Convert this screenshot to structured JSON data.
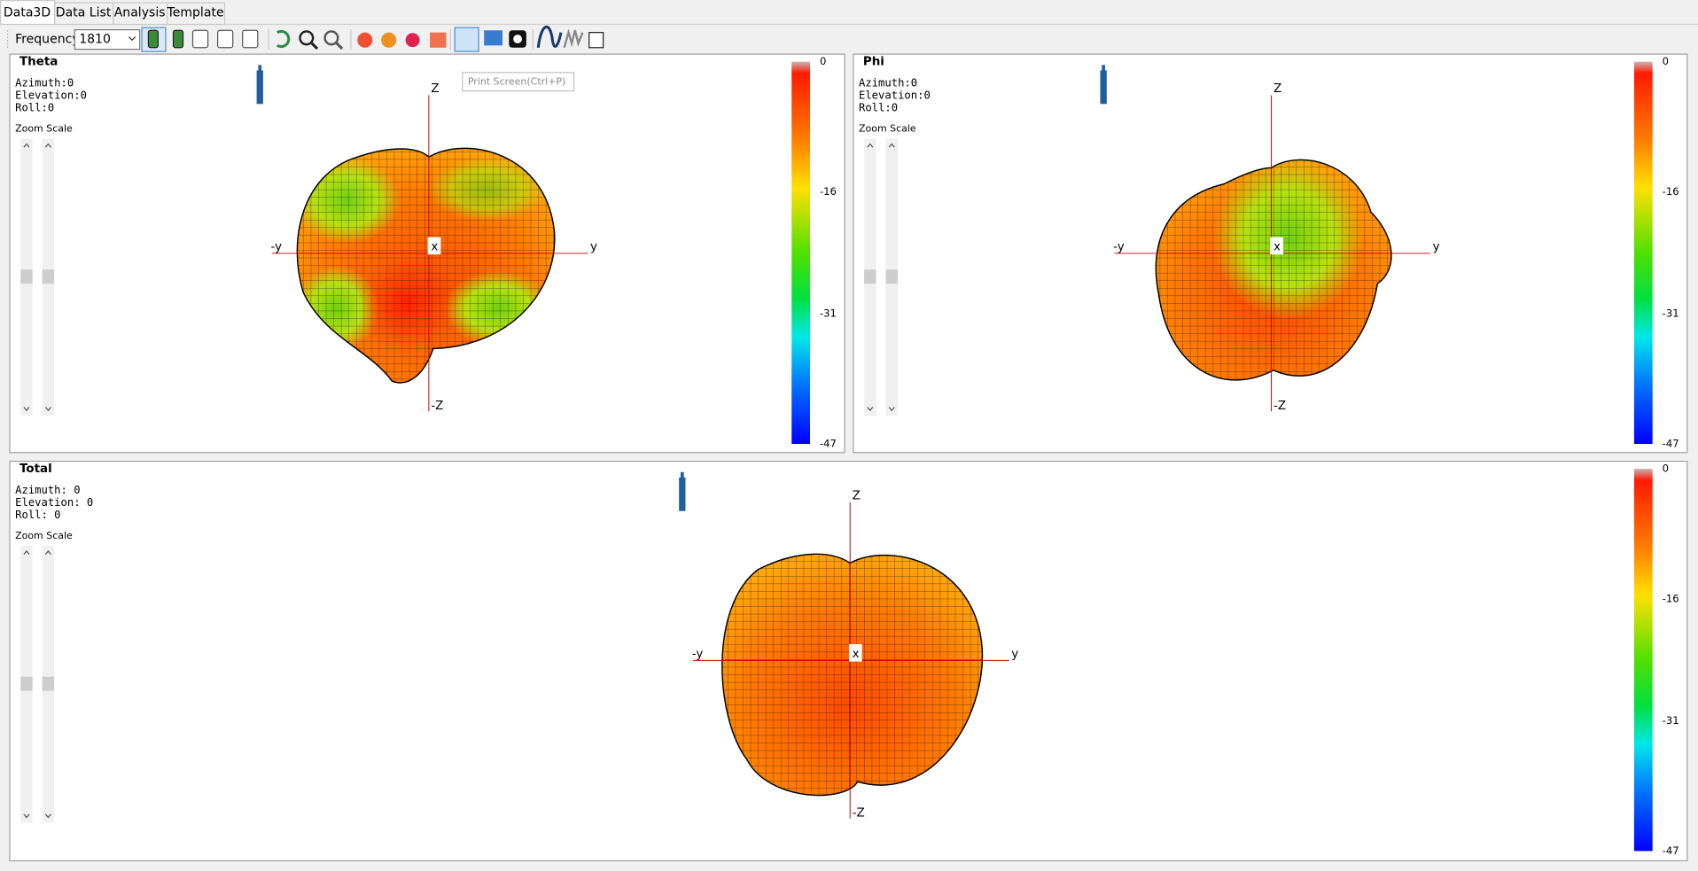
{
  "tabs": [
    "Data3D",
    "Data List",
    "Analysis",
    "Template"
  ],
  "toolbar": {
    "frequency_label": "Frequency:",
    "frequency_value": "1810",
    "tooltip": "Print Screen(Ctrl+P)"
  },
  "panels": [
    {
      "title": "Theta",
      "info": [
        "Azimuth:0",
        "Elevation:0",
        "Roll:0"
      ],
      "zoom_label": "Zoom Scale",
      "axes": {
        "z": "Z",
        "neg_z": "-Z",
        "neg_y": "-y",
        "y": "y",
        "x": "x"
      },
      "colorbar_ticks": [
        0,
        -16,
        -31,
        -47
      ]
    },
    {
      "title": "Phi",
      "info": [
        "Azimuth:0",
        "Elevation:0",
        "Roll:0"
      ],
      "zoom_label": "Zoom Scale",
      "axes": {
        "z": "Z",
        "neg_z": "-Z",
        "neg_y": "-y",
        "y": "y",
        "x": "x"
      },
      "colorbar_ticks": [
        0,
        -16,
        -31,
        -47
      ]
    },
    {
      "title": "Total",
      "info": [
        "Azimuth: 0",
        "Elevation: 0",
        "Roll: 0"
      ],
      "zoom_label": "Zoom Scale",
      "axes": {
        "z": "Z",
        "neg_z": "-Z",
        "neg_y": "-y",
        "y": "y",
        "x": "x"
      },
      "colorbar_ticks": [
        0,
        -16,
        -31,
        -47
      ]
    }
  ]
}
